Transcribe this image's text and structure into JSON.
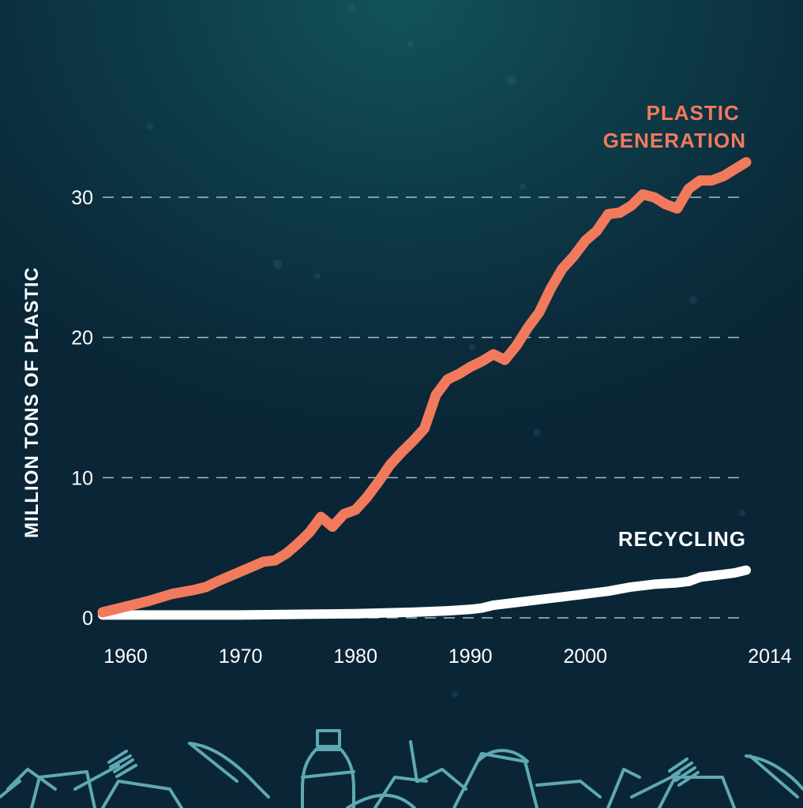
{
  "chart_data": {
    "type": "line",
    "ylabel": "MILLION TONS OF PLASTIC",
    "xlim": [
      1958,
      2014
    ],
    "ylim": [
      0,
      30
    ],
    "y_ticks": [
      0,
      10,
      20,
      30
    ],
    "x_ticks": [
      1960,
      1970,
      1980,
      1990,
      2000,
      2014
    ],
    "grid": true,
    "series": [
      {
        "name": "PLASTIC GENERATION",
        "color": "#f27a5c",
        "x": [
          1958,
          1960,
          1962,
          1964,
          1966,
          1967,
          1968,
          1970,
          1972,
          1973,
          1974,
          1975,
          1976,
          1977,
          1978,
          1979,
          1980,
          1981,
          1982,
          1983,
          1984,
          1985,
          1986,
          1987,
          1988,
          1989,
          1990,
          1991,
          1992,
          1993,
          1994,
          1995,
          1996,
          1997,
          1998,
          1999,
          2000,
          2001,
          2002,
          2003,
          2004,
          2005,
          2006,
          2007,
          2008,
          2009,
          2010,
          2011,
          2012,
          2013,
          2014
        ],
        "values": [
          0.4,
          0.8,
          1.2,
          1.7,
          2.0,
          2.2,
          2.6,
          3.3,
          4.0,
          4.1,
          4.6,
          5.3,
          6.1,
          7.2,
          6.5,
          7.4,
          7.7,
          8.6,
          9.7,
          10.9,
          11.8,
          12.6,
          13.5,
          15.9,
          17.0,
          17.4,
          17.9,
          18.3,
          18.8,
          18.4,
          19.4,
          20.7,
          21.8,
          23.5,
          24.9,
          25.8,
          26.9,
          27.6,
          28.8,
          28.9,
          29.4,
          30.2,
          30.0,
          29.5,
          29.2,
          30.6,
          31.2,
          31.2,
          31.5,
          32.0,
          32.5
        ]
      },
      {
        "name": "RECYCLING",
        "color": "#ffffff",
        "x": [
          1958,
          1960,
          1970,
          1980,
          1985,
          1988,
          1990,
          1991,
          1992,
          1994,
          1996,
          1998,
          2000,
          2002,
          2004,
          2006,
          2008,
          2009,
          2010,
          2011,
          2012,
          2013,
          2014
        ],
        "values": [
          0.2,
          0.2,
          0.2,
          0.3,
          0.4,
          0.5,
          0.6,
          0.7,
          0.9,
          1.1,
          1.3,
          1.5,
          1.7,
          1.9,
          2.2,
          2.4,
          2.5,
          2.6,
          2.9,
          3.0,
          3.1,
          3.2,
          3.4
        ]
      }
    ]
  }
}
